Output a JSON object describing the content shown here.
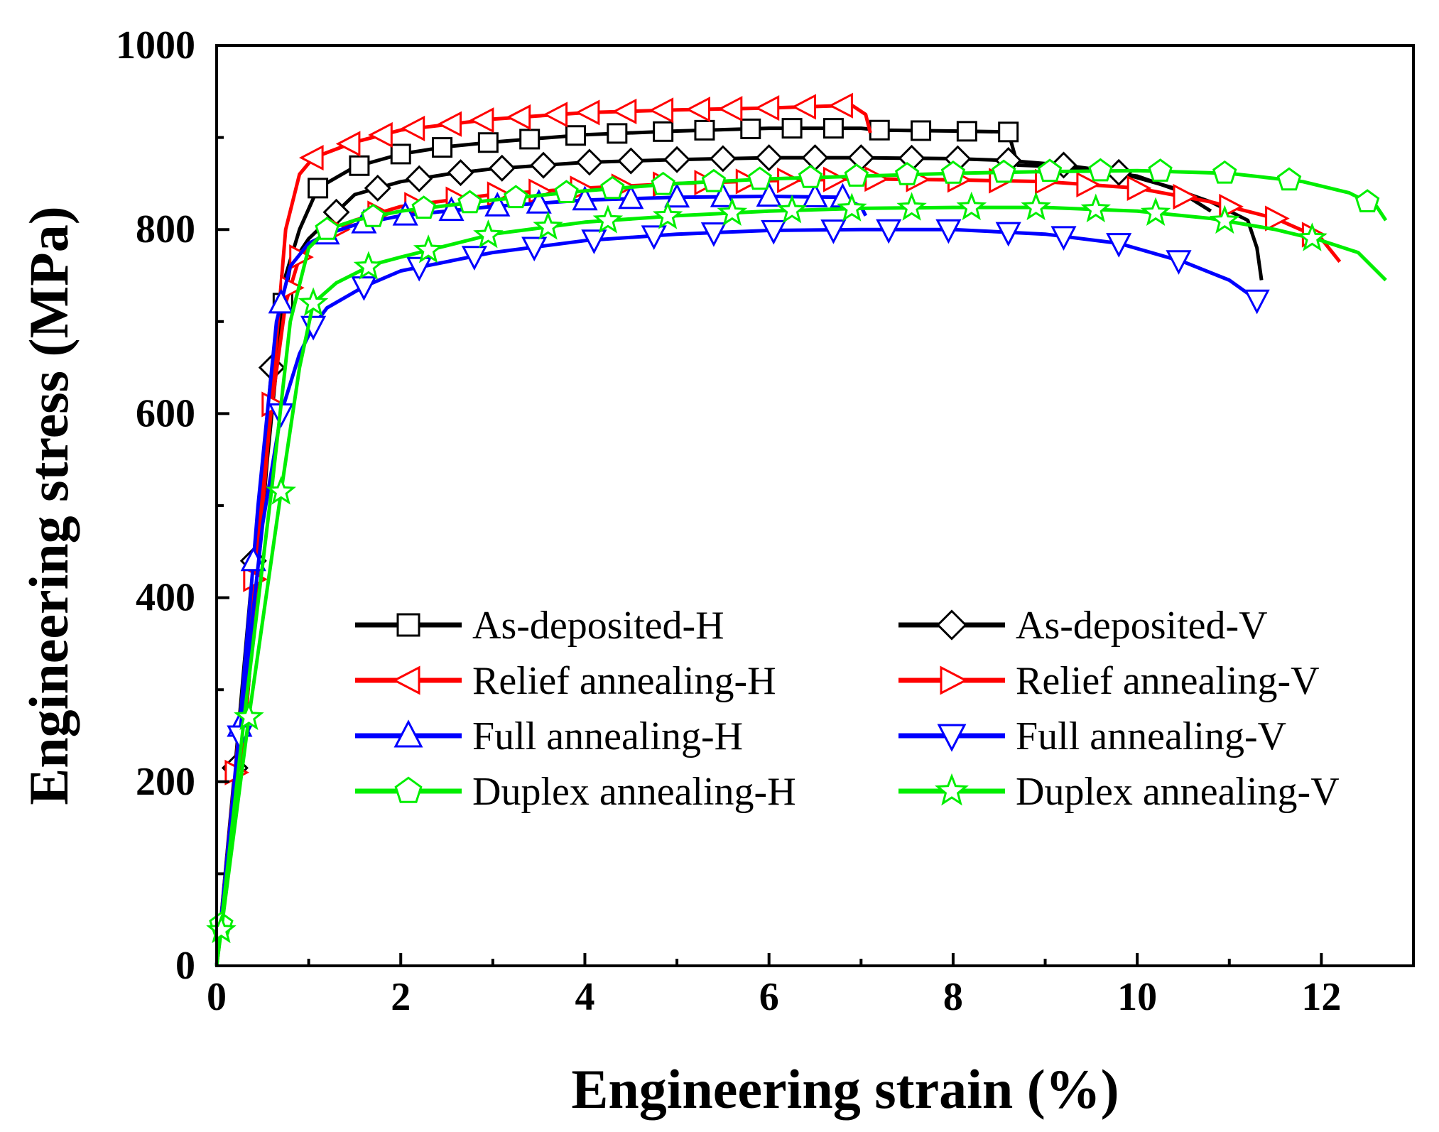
{
  "chart_data": {
    "type": "line",
    "title": "",
    "xlabel": "Engineering strain (%)",
    "ylabel": "Engineering stress (MPa)",
    "xlim": [
      0,
      13
    ],
    "ylim": [
      0,
      1000
    ],
    "xticks": [
      0,
      2,
      4,
      6,
      8,
      10,
      12
    ],
    "yticks": [
      0,
      200,
      400,
      600,
      800,
      1000
    ],
    "grid": false,
    "legend_position": "center (two columns)",
    "series": [
      {
        "name": "As-deposited-H",
        "color": "#000000",
        "marker": "square",
        "x": [
          0,
          0.3,
          0.55,
          0.75,
          0.9,
          1.1,
          1.5,
          2.0,
          2.5,
          3.0,
          4.0,
          5.0,
          6.0,
          7.0,
          7.2,
          8.0,
          8.6,
          8.7,
          9.2,
          10.0,
          10.8,
          11.2,
          11.3,
          11.35
        ],
        "y": [
          0,
          250,
          550,
          750,
          800,
          845,
          868,
          882,
          890,
          895,
          903,
          907,
          910,
          910,
          908,
          907,
          906,
          870,
          868,
          858,
          830,
          810,
          780,
          745
        ],
        "markers_x": [
          0.72,
          1.1,
          1.55,
          2.0,
          2.45,
          2.95,
          3.4,
          3.9,
          4.35,
          4.85,
          5.3,
          5.8,
          6.25,
          6.7,
          7.2,
          7.65,
          8.15,
          8.6
        ]
      },
      {
        "name": "As-deposited-V",
        "color": "#000000",
        "marker": "diamond",
        "x": [
          0,
          0.2,
          0.4,
          0.6,
          0.8,
          1.0,
          1.5,
          2.0,
          2.5,
          3.0,
          4.0,
          5.0,
          6.0,
          7.0,
          8.0,
          8.6,
          9.2,
          9.8,
          10.4,
          10.8
        ],
        "y": [
          0,
          215,
          440,
          650,
          760,
          790,
          838,
          852,
          860,
          866,
          873,
          876,
          878,
          878,
          877,
          875,
          870,
          862,
          845,
          820
        ],
        "markers_x": [
          0.2,
          0.4,
          0.6,
          1.3,
          1.75,
          2.2,
          2.65,
          3.1,
          3.55,
          4.05,
          4.5,
          5.0,
          5.5,
          6.0,
          6.5,
          7.0,
          7.55,
          8.05,
          8.6,
          9.2,
          9.8
        ]
      },
      {
        "name": "Relief annealing-H",
        "color": "#ff0000",
        "marker": "triangle-left",
        "x": [
          0,
          0.3,
          0.55,
          0.75,
          0.9,
          1.05,
          1.5,
          2.0,
          3.0,
          4.0,
          5.0,
          6.0,
          6.9,
          7.05,
          7.1
        ],
        "y": [
          0,
          250,
          560,
          800,
          860,
          878,
          895,
          908,
          920,
          927,
          930,
          932,
          935,
          925,
          905
        ],
        "markers_x": [
          1.05,
          1.45,
          1.8,
          2.15,
          2.55,
          2.9,
          3.3,
          3.7,
          4.05,
          4.45,
          4.85,
          5.25,
          5.6,
          6.0,
          6.4,
          6.8
        ]
      },
      {
        "name": "Relief annealing-V",
        "color": "#ff0000",
        "marker": "triangle-right",
        "x": [
          0,
          0.2,
          0.4,
          0.6,
          0.75,
          0.9,
          1.1,
          1.5,
          2.0,
          3.0,
          4.0,
          5.0,
          6.0,
          7.0,
          8.0,
          9.0,
          10.0,
          10.8,
          11.5,
          12.0,
          12.2
        ],
        "y": [
          0,
          210,
          420,
          610,
          720,
          770,
          790,
          810,
          825,
          838,
          845,
          850,
          853,
          855,
          854,
          852,
          845,
          830,
          812,
          790,
          765
        ],
        "markers_x": [
          0.2,
          0.4,
          0.6,
          0.8,
          0.9,
          1.3,
          1.75,
          2.15,
          2.6,
          3.05,
          3.5,
          3.95,
          4.4,
          4.85,
          5.3,
          5.75,
          6.2,
          6.7,
          7.15,
          7.6,
          8.05,
          8.5,
          9.0,
          9.45,
          10.0,
          10.5,
          11.0,
          11.5,
          11.9
        ]
      },
      {
        "name": "Full annealing-H",
        "color": "#0000ff",
        "marker": "triangle-up",
        "x": [
          0,
          0.25,
          0.45,
          0.65,
          0.8,
          1.0,
          1.2,
          1.5,
          2.0,
          3.0,
          4.0,
          5.0,
          6.0,
          6.8,
          7.0,
          7.05
        ],
        "y": [
          0,
          260,
          500,
          700,
          760,
          785,
          795,
          805,
          815,
          825,
          832,
          835,
          836,
          835,
          825,
          815
        ],
        "markers_x": [
          0.25,
          0.4,
          0.7,
          1.2,
          1.6,
          2.05,
          2.55,
          3.05,
          3.5,
          4.0,
          4.5,
          5.0,
          5.5,
          6.0,
          6.5,
          6.8
        ]
      },
      {
        "name": "Full annealing-V",
        "color": "#0000ff",
        "marker": "triangle-down",
        "x": [
          0,
          0.25,
          0.5,
          0.7,
          0.9,
          1.05,
          1.2,
          1.6,
          2.0,
          3.0,
          4.0,
          5.0,
          6.0,
          7.0,
          8.0,
          9.0,
          9.8,
          10.5,
          11.0,
          11.35
        ],
        "y": [
          0,
          250,
          480,
          600,
          665,
          695,
          715,
          738,
          755,
          775,
          788,
          795,
          799,
          800,
          800,
          795,
          785,
          765,
          745,
          720
        ],
        "markers_x": [
          0.25,
          0.7,
          1.05,
          1.6,
          2.2,
          2.8,
          3.45,
          4.1,
          4.75,
          5.4,
          6.05,
          6.7,
          7.3,
          7.95,
          8.6,
          9.2,
          9.8,
          10.45,
          11.3
        ]
      },
      {
        "name": "Duplex annealing-H",
        "color": "#00ee00",
        "marker": "pentagon",
        "x": [
          0,
          0.3,
          0.6,
          0.8,
          1.0,
          1.2,
          1.5,
          2.0,
          3.0,
          4.0,
          5.0,
          6.0,
          7.0,
          8.0,
          9.0,
          10.0,
          11.0,
          11.8,
          12.3,
          12.6,
          12.7
        ],
        "y": [
          0,
          270,
          520,
          700,
          780,
          800,
          810,
          820,
          832,
          842,
          850,
          855,
          858,
          861,
          863,
          864,
          861,
          852,
          840,
          825,
          810
        ],
        "markers_x": [
          0.05,
          1.2,
          1.7,
          2.25,
          2.75,
          3.25,
          3.8,
          4.3,
          4.85,
          5.4,
          5.9,
          6.45,
          6.95,
          7.5,
          8.0,
          8.55,
          9.05,
          9.6,
          10.25,
          10.95,
          11.65,
          12.5
        ]
      },
      {
        "name": "Duplex annealing-V",
        "color": "#00ee00",
        "marker": "star",
        "x": [
          0,
          0.35,
          0.7,
          0.9,
          1.05,
          1.3,
          1.7,
          2.0,
          3.0,
          4.0,
          5.0,
          6.0,
          7.0,
          8.0,
          9.0,
          10.0,
          10.8,
          11.5,
          12.0,
          12.4,
          12.7
        ],
        "y": [
          0,
          270,
          515,
          650,
          720,
          742,
          762,
          770,
          795,
          808,
          815,
          820,
          823,
          824,
          824,
          820,
          812,
          800,
          788,
          775,
          745
        ],
        "markers_x": [
          0.05,
          0.35,
          0.7,
          1.05,
          1.65,
          2.3,
          2.95,
          3.6,
          4.25,
          4.9,
          5.6,
          6.25,
          6.9,
          7.55,
          8.2,
          8.9,
          9.55,
          10.2,
          10.95,
          11.9
        ]
      }
    ]
  }
}
